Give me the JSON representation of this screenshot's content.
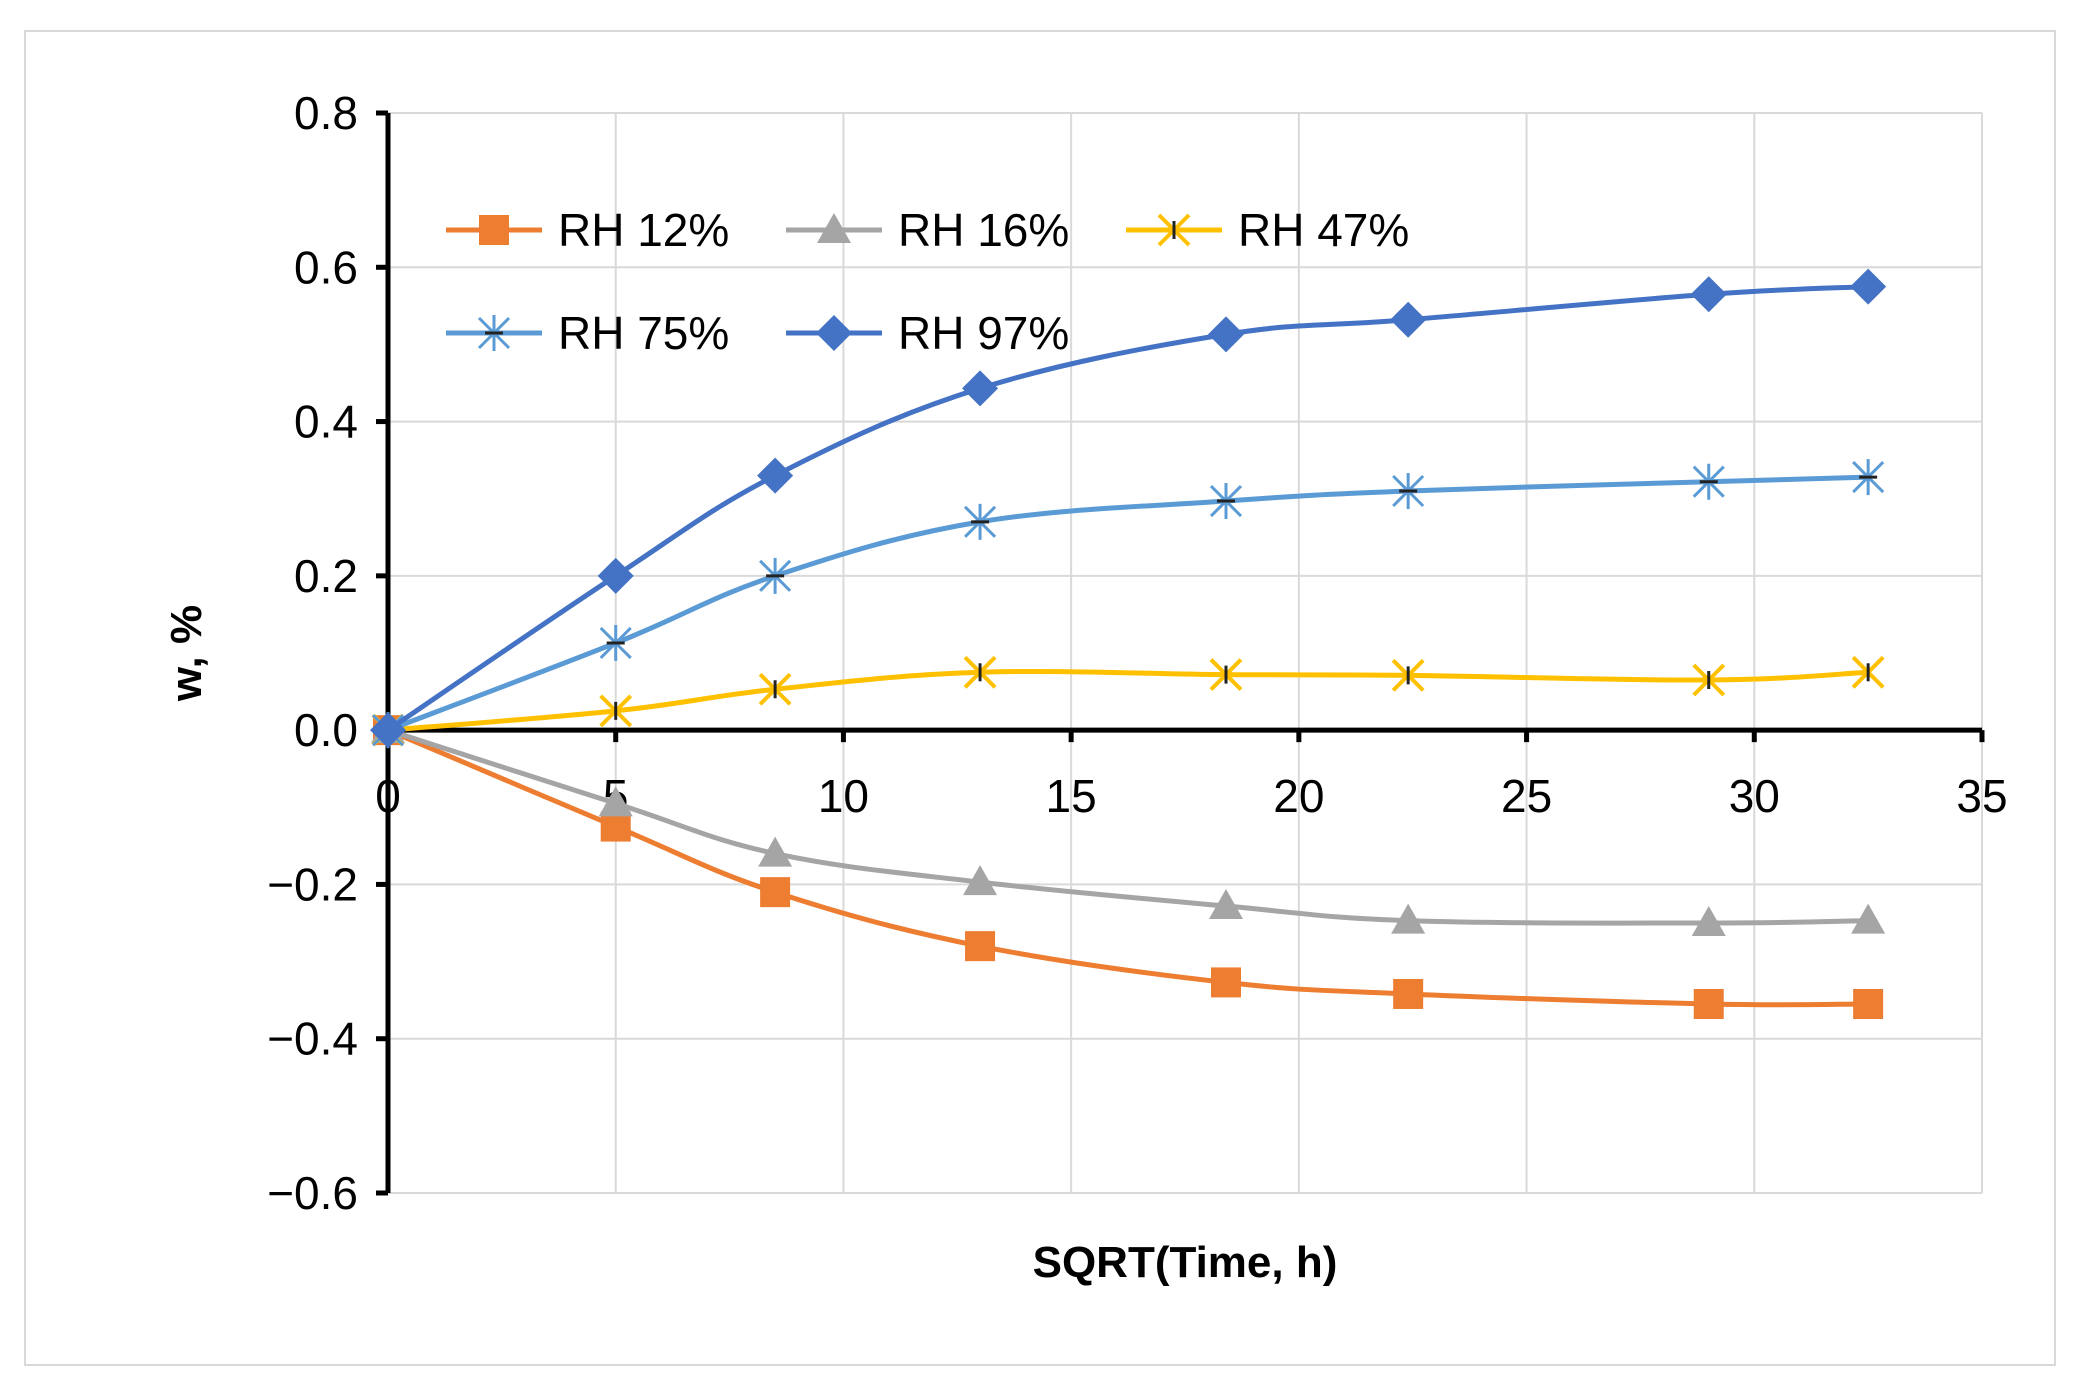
{
  "chart_data": {
    "type": "line",
    "title": "",
    "xlabel": "SQRT(Time, h)",
    "ylabel": "w, %",
    "xlim": [
      0,
      35
    ],
    "ylim": [
      -0.6,
      0.8
    ],
    "xticks": [
      0,
      5,
      10,
      15,
      20,
      25,
      30,
      35
    ],
    "xtick_labels": [
      "0",
      "5",
      "10",
      "15",
      "20",
      "25",
      "30",
      "35"
    ],
    "yticks": [
      -0.6,
      -0.4,
      -0.2,
      0.0,
      0.2,
      0.4,
      0.6,
      0.8
    ],
    "ytick_labels": [
      "−0.6",
      "−0.4",
      "−0.2",
      "0.0",
      "0.2",
      "0.4",
      "0.6",
      "0.8"
    ],
    "grid": true,
    "legend_position": "top-left",
    "x": [
      0,
      5,
      8.5,
      13,
      18.4,
      22.4,
      29,
      32.5
    ],
    "series": [
      {
        "name": "RH 12%",
        "color": "#ed7d31",
        "marker": "square",
        "values": [
          0,
          -0.125,
          -0.21,
          -0.28,
          -0.327,
          -0.342,
          -0.355,
          -0.355
        ]
      },
      {
        "name": "RH 16%",
        "color": "#a5a5a5",
        "marker": "triangle",
        "values": [
          0,
          -0.095,
          -0.16,
          -0.197,
          -0.228,
          -0.247,
          -0.25,
          -0.247
        ]
      },
      {
        "name": "RH 47%",
        "color": "#ffc000",
        "marker": "x",
        "values": [
          0,
          0.025,
          0.053,
          0.075,
          0.072,
          0.071,
          0.065,
          0.075
        ]
      },
      {
        "name": "RH 75%",
        "color": "#5b9bd5",
        "marker": "star",
        "values": [
          0,
          0.113,
          0.2,
          0.27,
          0.297,
          0.31,
          0.322,
          0.328
        ]
      },
      {
        "name": "RH 97%",
        "color": "#4472c4",
        "marker": "diamond",
        "values": [
          0,
          0.2,
          0.33,
          0.443,
          0.513,
          0.532,
          0.565,
          0.575
        ]
      }
    ]
  }
}
